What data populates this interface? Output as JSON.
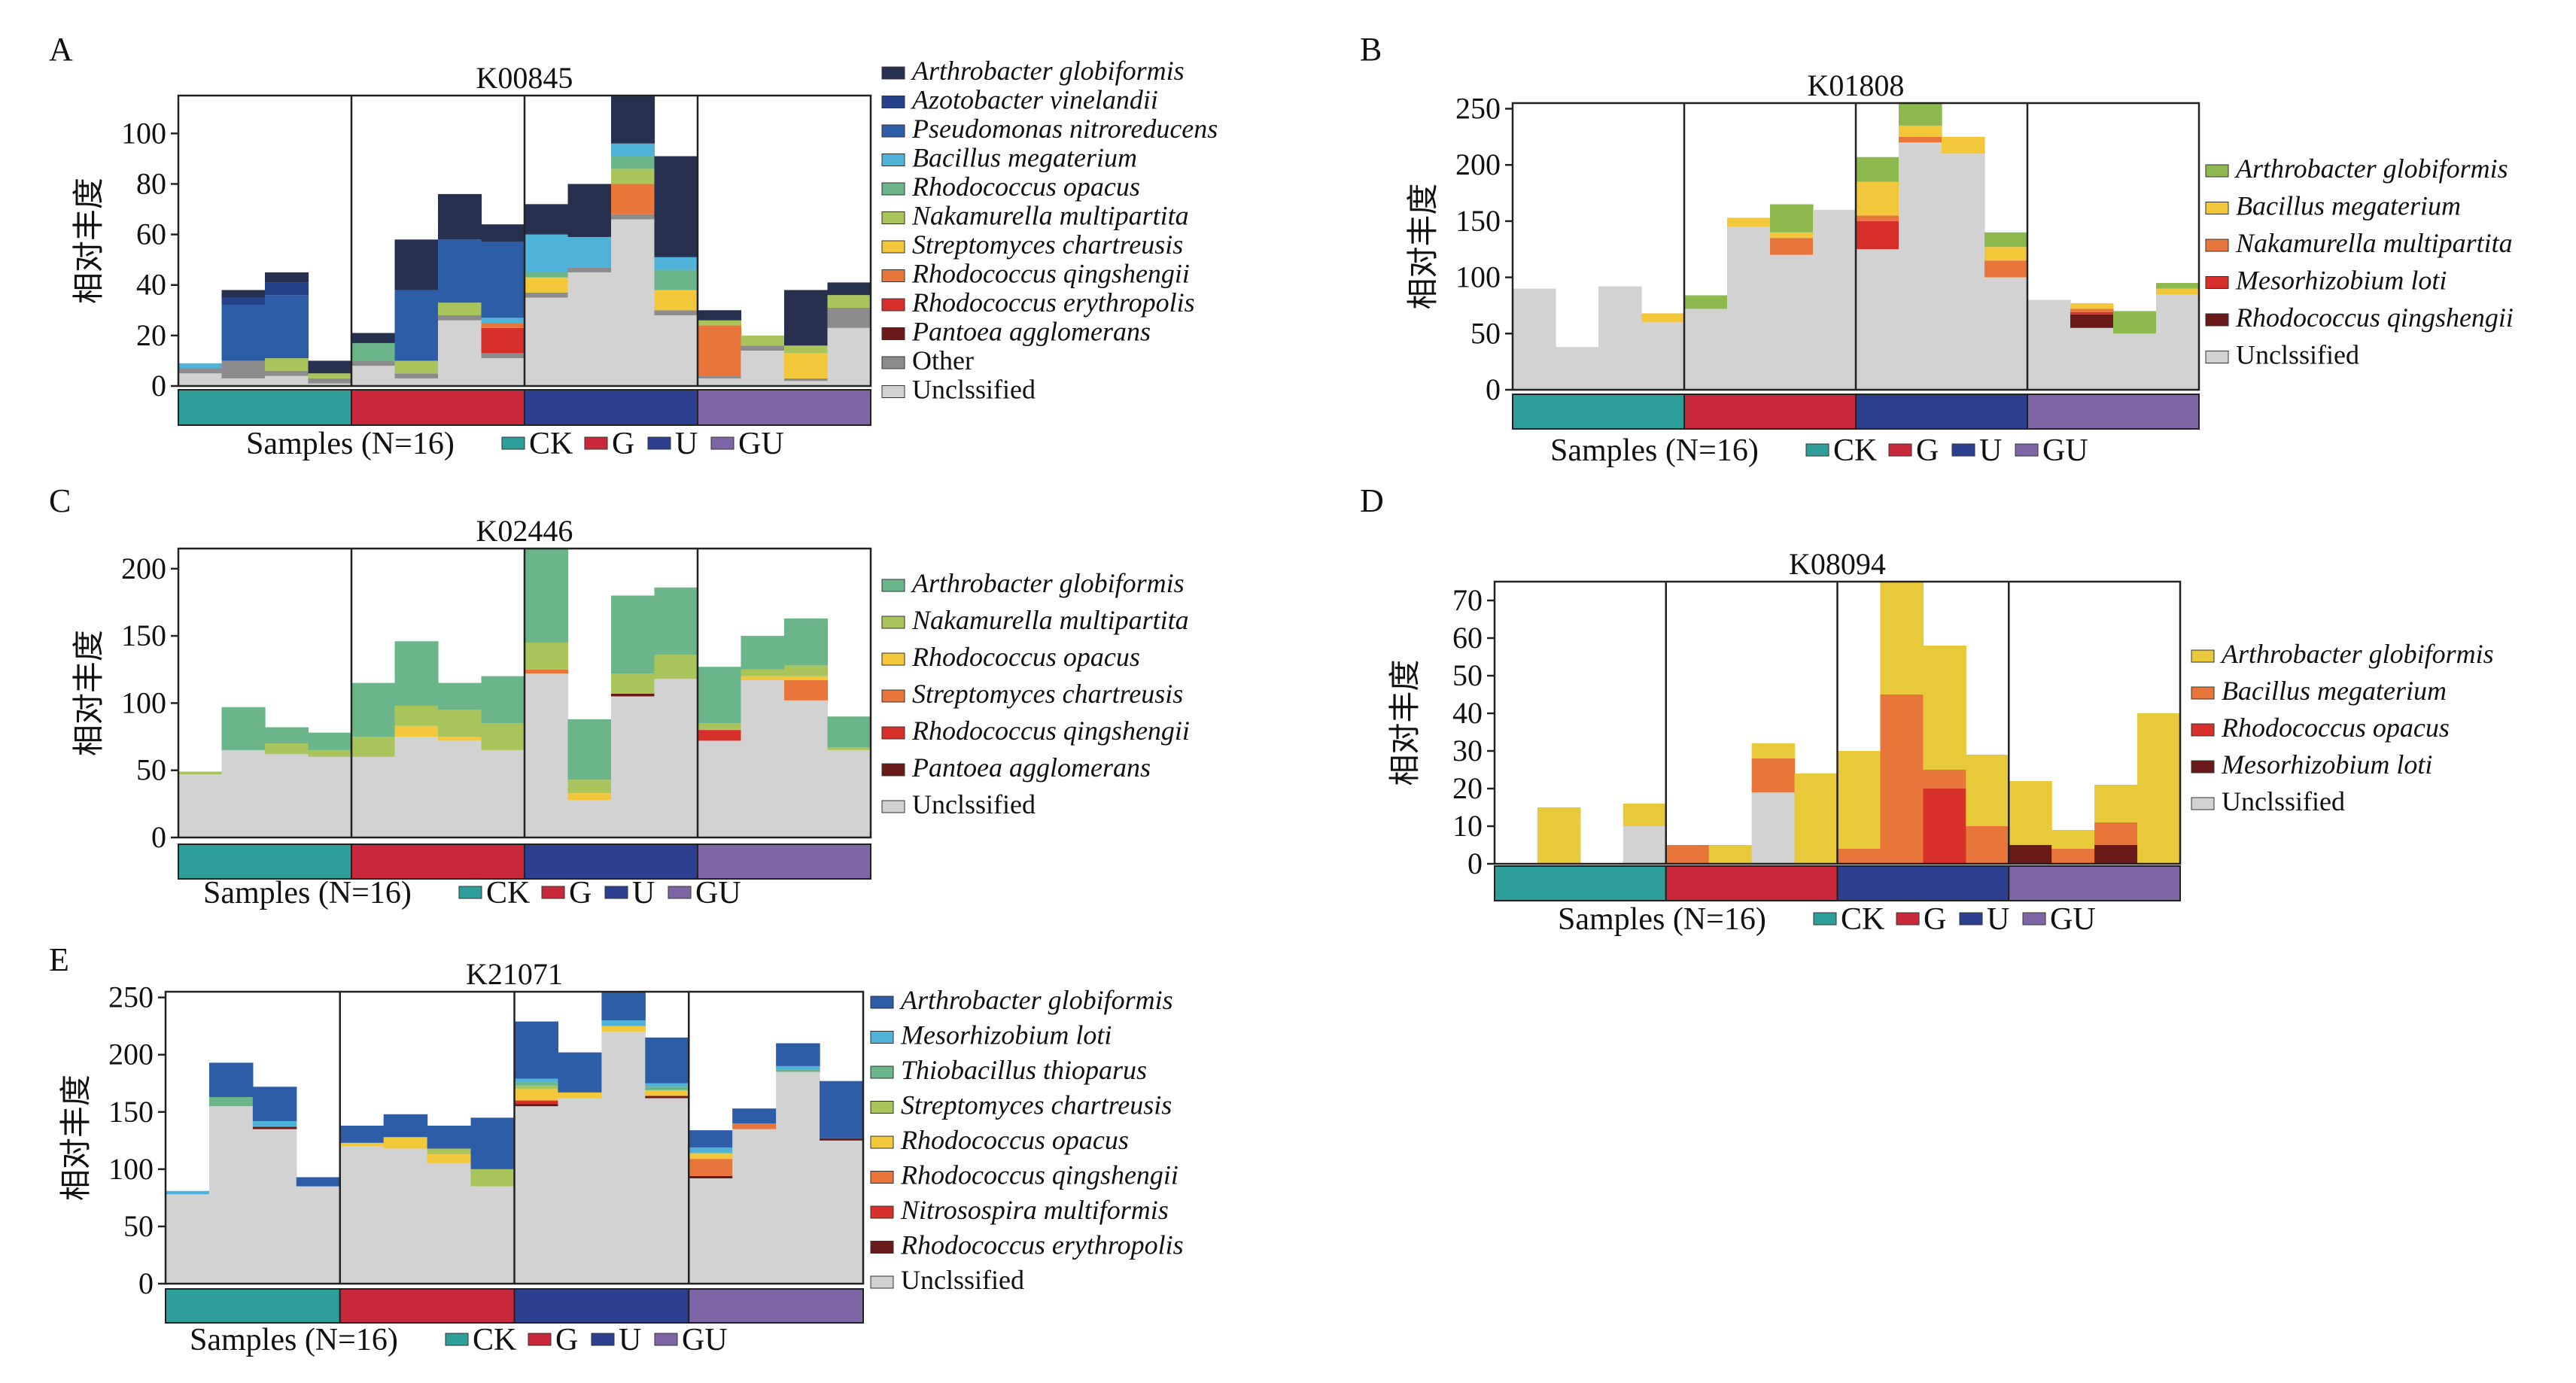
{
  "figure": {
    "group_colors": {
      "CK": "#2E9E9A",
      "G": "#C8283A",
      "U": "#2D3F8F",
      "GU": "#7E66A6"
    },
    "sample_label": "Samples (N=16)",
    "groups": [
      "CK",
      "G",
      "U",
      "GU"
    ]
  },
  "chart_data": [
    {
      "panel": "A",
      "title": "K00845",
      "type": "bar",
      "stacked": true,
      "ylabel": "相对丰度",
      "xlabel": "Samples (N=16)",
      "ylim": [
        0,
        115
      ],
      "yticks": [
        0,
        20,
        40,
        60,
        80,
        100
      ],
      "groups": [
        "CK",
        "G",
        "U",
        "GU"
      ],
      "legend": [
        "Arthrobacter globiformis",
        "Azotobacter vinelandii",
        "Pseudomonas nitroreducens",
        "Bacillus megaterium",
        "Rhodococcus opacus",
        "Nakamurella multipartita",
        "Streptomyces chartreusis",
        "Rhodococcus qingshengii",
        "Rhodococcus erythropolis",
        "Pantoea agglomerans",
        "Other",
        "Unclssified"
      ],
      "legend_italic": [
        true,
        true,
        true,
        true,
        true,
        true,
        true,
        true,
        true,
        true,
        false,
        false
      ],
      "series": [
        {
          "name": "Unclssified",
          "color": "#D2D2D2",
          "values": [
            5,
            3,
            4,
            1,
            8,
            3,
            26,
            11,
            35,
            45,
            66,
            28,
            3,
            14,
            2,
            23
          ]
        },
        {
          "name": "Other",
          "color": "#8C8C8C",
          "values": [
            2,
            7,
            2,
            2,
            2,
            2,
            2,
            2,
            2,
            2,
            2,
            2,
            1,
            2,
            1,
            8
          ]
        },
        {
          "name": "Pantoea agglomerans",
          "color": "#6B1A1A",
          "values": [
            0,
            0,
            0,
            0,
            0,
            0,
            0,
            0,
            0,
            0,
            0,
            0,
            0,
            0,
            0,
            0
          ]
        },
        {
          "name": "Rhodococcus erythropolis",
          "color": "#D7302A",
          "values": [
            0,
            0,
            0,
            0,
            0,
            0,
            0,
            10,
            0,
            0,
            0,
            0,
            0,
            0,
            0,
            0
          ]
        },
        {
          "name": "Rhodococcus qingshengii",
          "color": "#E8753A",
          "values": [
            0,
            0,
            0,
            0,
            0,
            0,
            0,
            2,
            0,
            0,
            12,
            0,
            20,
            0,
            0,
            0
          ]
        },
        {
          "name": "Streptomyces chartreusis",
          "color": "#F2C83A",
          "values": [
            0,
            0,
            0,
            0,
            0,
            0,
            0,
            0,
            6,
            0,
            0,
            8,
            0,
            0,
            10,
            0
          ]
        },
        {
          "name": "Nakamurella multipartita",
          "color": "#A8C45A",
          "values": [
            0,
            0,
            5,
            2,
            0,
            5,
            5,
            0,
            0,
            0,
            6,
            0,
            2,
            4,
            3,
            5
          ]
        },
        {
          "name": "Rhodococcus opacus",
          "color": "#6BB58A",
          "values": [
            0,
            0,
            0,
            0,
            7,
            0,
            0,
            0,
            2,
            0,
            5,
            8,
            0,
            0,
            0,
            0
          ]
        },
        {
          "name": "Bacillus megaterium",
          "color": "#4FB3D9",
          "values": [
            2,
            0,
            0,
            0,
            0,
            0,
            0,
            2,
            15,
            12,
            5,
            5,
            0,
            0,
            0,
            0
          ]
        },
        {
          "name": "Pseudomonas nitroreducens",
          "color": "#2E5DA8",
          "values": [
            0,
            22,
            25,
            0,
            0,
            28,
            25,
            30,
            0,
            0,
            0,
            0,
            0,
            0,
            0,
            0
          ]
        },
        {
          "name": "Azotobacter vinelandii",
          "color": "#25418A",
          "values": [
            0,
            3,
            5,
            0,
            0,
            0,
            0,
            0,
            0,
            0,
            0,
            0,
            0,
            0,
            0,
            0
          ]
        },
        {
          "name": "Arthrobacter globiformis",
          "color": "#28304F",
          "values": [
            0,
            3,
            4,
            5,
            4,
            20,
            18,
            7,
            12,
            21,
            20,
            40,
            4,
            0,
            22,
            5
          ]
        }
      ]
    },
    {
      "panel": "B",
      "title": "K01808",
      "type": "bar",
      "stacked": true,
      "ylabel": "相对丰度",
      "xlabel": "Samples (N=16)",
      "ylim": [
        0,
        255
      ],
      "yticks": [
        0,
        50,
        100,
        150,
        200,
        250
      ],
      "groups": [
        "CK",
        "G",
        "U",
        "GU"
      ],
      "legend": [
        "Arthrobacter globiformis",
        "Bacillus megaterium",
        "Nakamurella multipartita",
        "Mesorhizobium loti",
        "Rhodococcus qingshengii",
        "Unclssified"
      ],
      "legend_italic": [
        true,
        true,
        true,
        true,
        true,
        false
      ],
      "series": [
        {
          "name": "Unclssified",
          "color": "#D2D2D2",
          "values": [
            90,
            38,
            92,
            60,
            72,
            145,
            120,
            160,
            125,
            220,
            210,
            100,
            80,
            55,
            50,
            85
          ]
        },
        {
          "name": "Rhodococcus qingshengii",
          "color": "#6B1A1A",
          "values": [
            0,
            0,
            0,
            0,
            0,
            0,
            0,
            0,
            0,
            0,
            0,
            0,
            0,
            12,
            0,
            0
          ]
        },
        {
          "name": "Mesorhizobium loti",
          "color": "#D7302A",
          "values": [
            0,
            0,
            0,
            0,
            0,
            0,
            0,
            0,
            25,
            0,
            0,
            0,
            0,
            2,
            0,
            0
          ]
        },
        {
          "name": "Nakamurella multipartita",
          "color": "#E8753A",
          "values": [
            0,
            0,
            0,
            0,
            0,
            0,
            15,
            0,
            5,
            5,
            0,
            15,
            0,
            3,
            0,
            0
          ]
        },
        {
          "name": "Bacillus megaterium",
          "color": "#F2C83A",
          "values": [
            0,
            0,
            0,
            8,
            0,
            8,
            5,
            0,
            30,
            10,
            15,
            12,
            0,
            5,
            0,
            5
          ]
        },
        {
          "name": "Arthrobacter globiformis",
          "color": "#8DB84E",
          "values": [
            0,
            0,
            0,
            0,
            12,
            0,
            25,
            0,
            22,
            20,
            0,
            13,
            0,
            0,
            20,
            5
          ]
        }
      ]
    },
    {
      "panel": "C",
      "title": "K02446",
      "type": "bar",
      "stacked": true,
      "ylabel": "相对丰度",
      "xlabel": "Samples (N=16)",
      "ylim": [
        0,
        215
      ],
      "yticks": [
        0,
        50,
        100,
        150,
        200
      ],
      "groups": [
        "CK",
        "G",
        "U",
        "GU"
      ],
      "legend": [
        "Arthrobacter globiformis",
        "Nakamurella multipartita",
        "Rhodococcus opacus",
        "Streptomyces chartreusis",
        "Rhodococcus qingshengii",
        "Pantoea agglomerans",
        "Unclssified"
      ],
      "legend_italic": [
        true,
        true,
        true,
        true,
        true,
        true,
        false
      ],
      "series": [
        {
          "name": "Unclssified",
          "color": "#D2D2D2",
          "values": [
            47,
            65,
            62,
            60,
            60,
            75,
            72,
            65,
            122,
            28,
            105,
            118,
            72,
            117,
            102,
            65
          ]
        },
        {
          "name": "Pantoea agglomerans",
          "color": "#6B1A1A",
          "values": [
            0,
            0,
            0,
            0,
            0,
            0,
            0,
            0,
            0,
            0,
            2,
            0,
            0,
            0,
            0,
            0
          ]
        },
        {
          "name": "Rhodococcus qingshengii",
          "color": "#D7302A",
          "values": [
            0,
            0,
            0,
            0,
            0,
            0,
            0,
            0,
            0,
            0,
            0,
            0,
            8,
            0,
            0,
            0
          ]
        },
        {
          "name": "Streptomyces chartreusis",
          "color": "#E8753A",
          "values": [
            0,
            0,
            0,
            0,
            0,
            0,
            0,
            0,
            3,
            0,
            0,
            0,
            0,
            0,
            15,
            0
          ]
        },
        {
          "name": "Rhodococcus opacus",
          "color": "#F2C83A",
          "values": [
            0,
            0,
            0,
            0,
            0,
            8,
            3,
            0,
            0,
            5,
            0,
            0,
            0,
            3,
            3,
            0
          ]
        },
        {
          "name": "Nakamurella multipartita",
          "color": "#A8C45A",
          "values": [
            2,
            0,
            8,
            5,
            15,
            15,
            20,
            20,
            20,
            10,
            15,
            18,
            5,
            5,
            8,
            2
          ]
        },
        {
          "name": "Arthrobacter globiformis",
          "color": "#6BB58A",
          "values": [
            0,
            32,
            12,
            13,
            40,
            48,
            20,
            35,
            70,
            45,
            58,
            50,
            42,
            25,
            35,
            23
          ]
        }
      ]
    },
    {
      "panel": "D",
      "title": "K08094",
      "type": "bar",
      "stacked": true,
      "ylabel": "相对丰度",
      "xlabel": "Samples (N=16)",
      "ylim": [
        0,
        75
      ],
      "yticks": [
        0,
        10,
        20,
        30,
        40,
        50,
        60,
        70
      ],
      "groups": [
        "CK",
        "G",
        "U",
        "GU"
      ],
      "legend": [
        "Arthrobacter globiformis",
        "Bacillus megaterium",
        "Rhodococcus opacus",
        "Mesorhizobium loti",
        "Unclssified"
      ],
      "legend_italic": [
        true,
        true,
        true,
        true,
        false
      ],
      "series": [
        {
          "name": "Unclssified",
          "color": "#D2D2D2",
          "values": [
            0,
            0,
            0,
            10,
            0,
            0,
            19,
            0,
            0,
            0,
            0,
            0,
            0,
            0,
            0,
            0
          ]
        },
        {
          "name": "Mesorhizobium loti",
          "color": "#6B1A1A",
          "values": [
            0,
            0,
            0,
            0,
            0,
            0,
            0,
            0,
            0,
            0,
            0,
            0,
            5,
            0,
            5,
            0
          ]
        },
        {
          "name": "Rhodococcus opacus",
          "color": "#D7302A",
          "values": [
            0,
            0,
            0,
            0,
            0,
            0,
            0,
            0,
            0,
            0,
            20,
            0,
            0,
            0,
            0,
            0
          ]
        },
        {
          "name": "Bacillus megaterium",
          "color": "#E8753A",
          "values": [
            0,
            0,
            0,
            0,
            5,
            0,
            9,
            0,
            4,
            45,
            5,
            10,
            0,
            4,
            6,
            0
          ]
        },
        {
          "name": "Arthrobacter globiformis",
          "color": "#E8C93A",
          "values": [
            0,
            15,
            0,
            6,
            0,
            5,
            4,
            24,
            26,
            30,
            33,
            19,
            17,
            5,
            10,
            40
          ]
        }
      ]
    },
    {
      "panel": "E",
      "title": "K21071",
      "type": "bar",
      "stacked": true,
      "ylabel": "相对丰度",
      "xlabel": "Samples (N=16)",
      "ylim": [
        0,
        255
      ],
      "yticks": [
        0,
        50,
        100,
        150,
        200,
        250
      ],
      "groups": [
        "CK",
        "G",
        "U",
        "GU"
      ],
      "legend": [
        "Arthrobacter globiformis",
        "Mesorhizobium loti",
        "Thiobacillus thioparus",
        "Streptomyces chartreusis",
        "Rhodococcus opacus",
        "Rhodococcus qingshengii",
        "Nitrosospira multiformis",
        "Rhodococcus erythropolis",
        "Unclssified"
      ],
      "legend_italic": [
        true,
        true,
        true,
        true,
        true,
        true,
        true,
        true,
        false
      ],
      "series": [
        {
          "name": "Unclssified",
          "color": "#D2D2D2",
          "values": [
            78,
            155,
            135,
            85,
            120,
            118,
            105,
            85,
            155,
            162,
            220,
            162,
            92,
            135,
            185,
            125
          ]
        },
        {
          "name": "Rhodococcus erythropolis",
          "color": "#6B1A1A",
          "values": [
            0,
            0,
            2,
            0,
            0,
            0,
            0,
            0,
            2,
            0,
            0,
            2,
            2,
            0,
            0,
            2
          ]
        },
        {
          "name": "Nitrosospira multiformis",
          "color": "#D7302A",
          "values": [
            0,
            0,
            0,
            0,
            0,
            0,
            0,
            0,
            3,
            0,
            0,
            0,
            0,
            0,
            0,
            0
          ]
        },
        {
          "name": "Rhodococcus qingshengii",
          "color": "#E8753A",
          "values": [
            0,
            0,
            0,
            0,
            0,
            0,
            0,
            0,
            0,
            0,
            0,
            0,
            15,
            5,
            0,
            0
          ]
        },
        {
          "name": "Rhodococcus opacus",
          "color": "#F2C83A",
          "values": [
            0,
            0,
            0,
            0,
            3,
            10,
            8,
            0,
            10,
            5,
            5,
            5,
            5,
            0,
            0,
            0
          ]
        },
        {
          "name": "Streptomyces chartreusis",
          "color": "#A8C45A",
          "values": [
            0,
            0,
            0,
            0,
            0,
            0,
            5,
            15,
            3,
            0,
            0,
            0,
            0,
            0,
            0,
            0
          ]
        },
        {
          "name": "Thiobacillus thioparus",
          "color": "#6BB58A",
          "values": [
            0,
            8,
            0,
            0,
            0,
            0,
            0,
            0,
            3,
            0,
            0,
            3,
            0,
            0,
            2,
            0
          ]
        },
        {
          "name": "Mesorhizobium loti",
          "color": "#4FB3D9",
          "values": [
            3,
            0,
            5,
            0,
            0,
            0,
            0,
            0,
            3,
            0,
            5,
            3,
            5,
            0,
            3,
            0
          ]
        },
        {
          "name": "Arthrobacter globiformis",
          "color": "#2E5DA8",
          "values": [
            0,
            30,
            30,
            8,
            15,
            20,
            20,
            45,
            50,
            35,
            25,
            40,
            15,
            13,
            20,
            50
          ]
        }
      ]
    }
  ]
}
